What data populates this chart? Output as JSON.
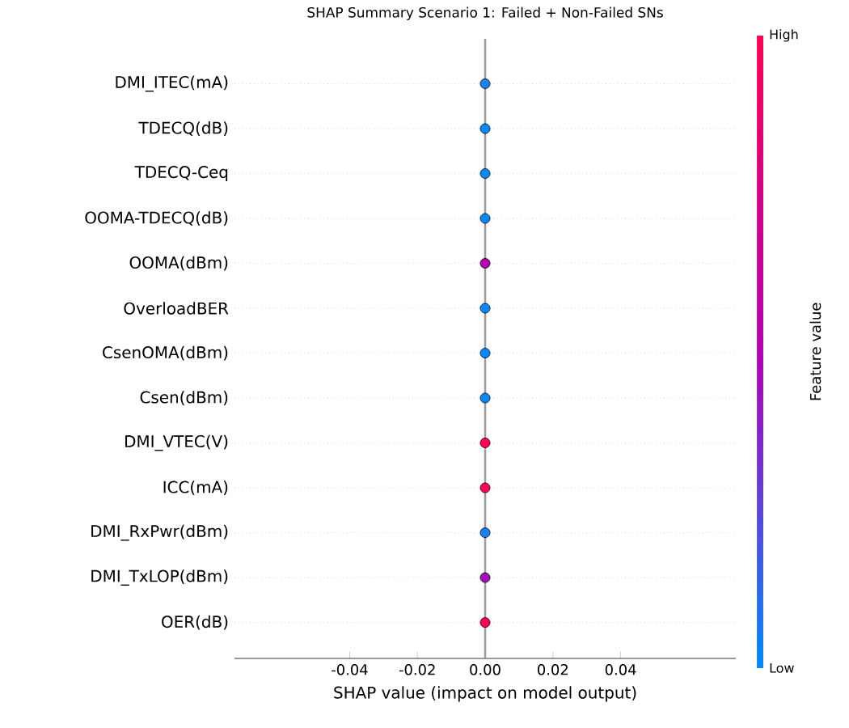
{
  "chart_data": {
    "type": "scatter",
    "orientation": "horizontal",
    "title": "SHAP Summary Scenario 1: Failed + Non-Failed SNs",
    "xlabel": "SHAP value (impact on model output)",
    "clabel": "Feature value",
    "categories": [
      "DMI_ITEC(mA)",
      "TDECQ(dB)",
      "TDECQ-Ceq",
      "OOMA-TDECQ(dB)",
      "OOMA(dBm)",
      "OverloadBER",
      "CsenOMA(dBm)",
      "Csen(dBm)",
      "DMI_VTEC(V)",
      "ICC(mA)",
      "DMI_RxPwr(dBm)",
      "DMI_TxLOP(dBm)",
      "OER(dB)"
    ],
    "values": [
      0,
      0,
      0,
      0,
      0,
      0,
      0,
      0,
      0,
      0,
      0,
      0,
      0
    ],
    "colors": [
      "#1e80f0",
      "#0a88f8",
      "#0a88f8",
      "#0a88f8",
      "#b000b0",
      "#0a88f8",
      "#0a88f8",
      "#0a88f8",
      "#ff0056",
      "#ff0056",
      "#1e80f0",
      "#a010b8",
      "#ff0056"
    ],
    "annotations": [
      "Low",
      "High"
    ],
    "xlim": [
      -0.074,
      0.074
    ],
    "xticks": [
      -0.04,
      -0.02,
      {
        "value": 0,
        "label": "0.00"
      },
      0.02,
      0.04
    ],
    "ref_lines": [
      {
        "axis": "x",
        "value": 0,
        "color": "#999999"
      }
    ],
    "grid": "y"
  }
}
